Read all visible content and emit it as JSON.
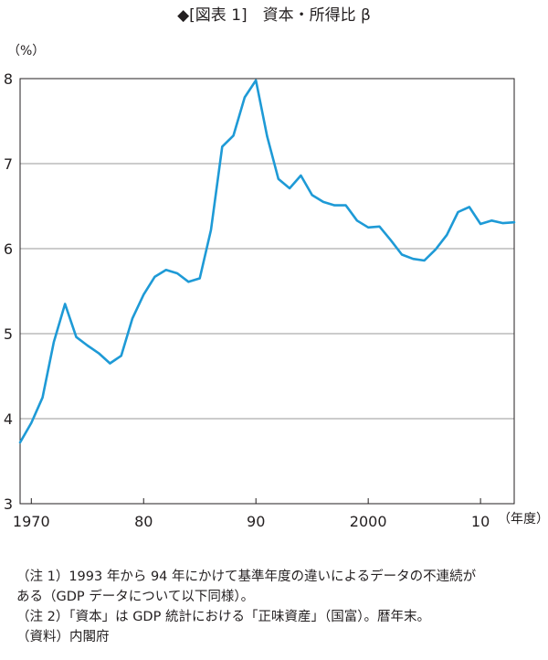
{
  "title": "◆[図表 1]　資本・所得比 β",
  "chart_data": {
    "type": "line",
    "title": "◆[図表 1]　資本・所得比 β",
    "y_unit": "（%）",
    "x_unit": "（年度）",
    "xlim": [
      1969,
      2013
    ],
    "ylim": [
      3,
      8
    ],
    "y_ticks": [
      "3",
      "4",
      "5",
      "6",
      "7",
      "8"
    ],
    "x_ticks": [
      {
        "value": 1970,
        "label": "1970"
      },
      {
        "value": 1980,
        "label": "80"
      },
      {
        "value": 1990,
        "label": "90"
      },
      {
        "value": 2000,
        "label": "2000"
      },
      {
        "value": 2010,
        "label": "10"
      }
    ],
    "grid": "horizontal",
    "line_color": "#1e9ad6",
    "series": [
      {
        "x": [
          1969,
          1970,
          1971,
          1972,
          1973,
          1974,
          1975,
          1976,
          1977,
          1978,
          1979,
          1980,
          1981,
          1982,
          1983,
          1984,
          1985,
          1986,
          1987,
          1988,
          1989,
          1990,
          1991,
          1992,
          1993,
          1994,
          1995,
          1996,
          1997,
          1998,
          1999,
          2000,
          2001,
          2002,
          2003,
          2004,
          2005,
          2006,
          2007,
          2008,
          2009,
          2010,
          2011,
          2012,
          2013
        ],
        "values": [
          3.72,
          3.95,
          4.25,
          4.9,
          5.35,
          4.96,
          4.86,
          4.77,
          4.65,
          4.74,
          5.18,
          5.46,
          5.67,
          5.75,
          5.71,
          5.61,
          5.65,
          6.22,
          7.2,
          7.33,
          7.78,
          7.98,
          7.32,
          6.82,
          6.71,
          6.86,
          6.63,
          6.55,
          6.51,
          6.51,
          6.33,
          6.25,
          6.26,
          6.1,
          5.93,
          5.88,
          5.86,
          5.99,
          6.16,
          6.43,
          6.49,
          6.29,
          6.33,
          6.3,
          6.31
        ]
      }
    ]
  },
  "notes": [
    "（注 1）1993 年から 94 年にかけて基準年度の違いによるデータの不連続が",
    "ある（GDP データについて以下同様）。",
    "（注 2）「資本」は GDP 統計における「正味資産」（国富）。暦年末。",
    "（資料）内閣府"
  ]
}
